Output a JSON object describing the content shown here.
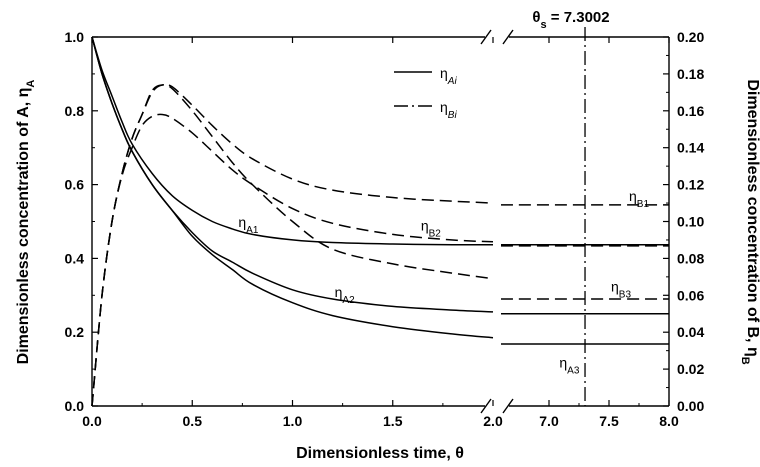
{
  "chart_data": {
    "type": "line",
    "xlabel": "Dimensionless time, θ",
    "ylabel_left": "Dimensionless concentration of A, η",
    "ylabel_left_sub": "A",
    "ylabel_right": "Dimensionless concentration of B, η",
    "ylabel_right_sub": "B",
    "annotation": {
      "text": "θ",
      "sub": "s",
      "rest": " = 7.3002",
      "x": 7.3002
    },
    "x_left_range": [
      0,
      2.0
    ],
    "x_right_range": [
      6.6,
      8.0
    ],
    "ylim_left": [
      0,
      1.0
    ],
    "ylim_right": [
      0,
      0.2
    ],
    "x_ticks_left": [
      {
        "v": 0.0,
        "label": "0.0"
      },
      {
        "v": 0.5,
        "label": "0.5"
      },
      {
        "v": 1.0,
        "label": "1.0"
      },
      {
        "v": 1.5,
        "label": "1.5"
      },
      {
        "v": 2.0,
        "label": "2.0"
      }
    ],
    "x_ticks_right": [
      {
        "v": 7.0,
        "label": "7.0"
      },
      {
        "v": 7.5,
        "label": "7.5"
      },
      {
        "v": 8.0,
        "label": "8.0"
      }
    ],
    "y_ticks_left": [
      "0.0",
      "0.2",
      "0.4",
      "0.6",
      "0.8",
      "1.0"
    ],
    "y_ticks_right": [
      "0.00",
      "0.02",
      "0.04",
      "0.06",
      "0.08",
      "0.10",
      "0.12",
      "0.14",
      "0.16",
      "0.18",
      "0.20"
    ],
    "legend": [
      {
        "text": "η",
        "sub": "Ai",
        "style": "solid"
      },
      {
        "text": "η",
        "sub": "Bi",
        "style": "dashdot"
      }
    ],
    "series": [
      {
        "name": "ηA1",
        "axis": "left",
        "style": "solid",
        "left": [
          [
            0,
            1.0
          ],
          [
            0.05,
            0.91
          ],
          [
            0.1,
            0.84
          ],
          [
            0.15,
            0.77
          ],
          [
            0.2,
            0.71
          ],
          [
            0.3,
            0.63
          ],
          [
            0.4,
            0.57
          ],
          [
            0.5,
            0.53
          ],
          [
            0.6,
            0.5
          ],
          [
            0.7,
            0.48
          ],
          [
            0.8,
            0.465
          ],
          [
            1.0,
            0.45
          ],
          [
            1.2,
            0.443
          ],
          [
            1.5,
            0.439
          ],
          [
            1.8,
            0.437
          ],
          [
            2.0,
            0.437
          ]
        ],
        "right": [
          [
            6.6,
            0.437
          ],
          [
            8.0,
            0.437
          ]
        ]
      },
      {
        "name": "ηA2",
        "axis": "left",
        "style": "solid",
        "left": [
          [
            0,
            1.0
          ],
          [
            0.05,
            0.9
          ],
          [
            0.1,
            0.82
          ],
          [
            0.15,
            0.75
          ],
          [
            0.2,
            0.69
          ],
          [
            0.3,
            0.6
          ],
          [
            0.4,
            0.53
          ],
          [
            0.5,
            0.47
          ],
          [
            0.6,
            0.42
          ],
          [
            0.7,
            0.39
          ],
          [
            0.8,
            0.36
          ],
          [
            1.0,
            0.315
          ],
          [
            1.2,
            0.29
          ],
          [
            1.5,
            0.27
          ],
          [
            1.8,
            0.26
          ],
          [
            2.0,
            0.255
          ]
        ],
        "right": [
          [
            6.6,
            0.25
          ],
          [
            8.0,
            0.25
          ]
        ]
      },
      {
        "name": "ηA3",
        "axis": "left",
        "style": "solid",
        "left": [
          [
            0,
            1.0
          ],
          [
            0.05,
            0.9
          ],
          [
            0.1,
            0.82
          ],
          [
            0.15,
            0.75
          ],
          [
            0.2,
            0.69
          ],
          [
            0.3,
            0.6
          ],
          [
            0.4,
            0.53
          ],
          [
            0.5,
            0.46
          ],
          [
            0.6,
            0.41
          ],
          [
            0.7,
            0.37
          ],
          [
            0.8,
            0.33
          ],
          [
            1.0,
            0.28
          ],
          [
            1.2,
            0.245
          ],
          [
            1.5,
            0.215
          ],
          [
            1.8,
            0.195
          ],
          [
            2.0,
            0.185
          ]
        ],
        "right": [
          [
            6.6,
            0.168
          ],
          [
            8.0,
            0.168
          ]
        ]
      },
      {
        "name": "ηB1",
        "axis": "right",
        "style": "dashed",
        "left": [
          [
            0,
            0.0
          ],
          [
            0.05,
            0.06
          ],
          [
            0.1,
            0.1
          ],
          [
            0.15,
            0.126
          ],
          [
            0.2,
            0.145
          ],
          [
            0.25,
            0.158
          ],
          [
            0.3,
            0.171
          ],
          [
            0.35,
            0.174
          ],
          [
            0.4,
            0.173
          ],
          [
            0.5,
            0.163
          ],
          [
            0.6,
            0.152
          ],
          [
            0.7,
            0.142
          ],
          [
            0.8,
            0.134
          ],
          [
            1.0,
            0.123
          ],
          [
            1.2,
            0.117
          ],
          [
            1.5,
            0.113
          ],
          [
            1.8,
            0.111
          ],
          [
            2.0,
            0.11
          ]
        ],
        "right": [
          [
            6.6,
            0.109
          ],
          [
            8.0,
            0.109
          ]
        ]
      },
      {
        "name": "ηB2",
        "axis": "right",
        "style": "dashed",
        "left": [
          [
            0,
            0.0
          ],
          [
            0.05,
            0.06
          ],
          [
            0.1,
            0.1
          ],
          [
            0.15,
            0.125
          ],
          [
            0.2,
            0.14
          ],
          [
            0.25,
            0.152
          ],
          [
            0.3,
            0.157
          ],
          [
            0.35,
            0.158
          ],
          [
            0.4,
            0.156
          ],
          [
            0.5,
            0.148
          ],
          [
            0.6,
            0.138
          ],
          [
            0.7,
            0.128
          ],
          [
            0.8,
            0.12
          ],
          [
            1.0,
            0.107
          ],
          [
            1.2,
            0.099
          ],
          [
            1.5,
            0.093
          ],
          [
            1.8,
            0.09
          ],
          [
            2.0,
            0.089
          ]
        ],
        "right": [
          [
            6.6,
            0.0868
          ],
          [
            8.0,
            0.0868
          ]
        ]
      },
      {
        "name": "ηB3",
        "axis": "right",
        "style": "dashed",
        "left": [
          [
            0,
            0.0
          ],
          [
            0.05,
            0.06
          ],
          [
            0.1,
            0.1
          ],
          [
            0.15,
            0.126
          ],
          [
            0.2,
            0.145
          ],
          [
            0.25,
            0.158
          ],
          [
            0.3,
            0.17
          ],
          [
            0.35,
            0.174
          ],
          [
            0.4,
            0.172
          ],
          [
            0.5,
            0.16
          ],
          [
            0.6,
            0.146
          ],
          [
            0.7,
            0.132
          ],
          [
            0.8,
            0.12
          ],
          [
            1.0,
            0.1
          ],
          [
            1.2,
            0.085
          ],
          [
            1.5,
            0.077
          ],
          [
            1.8,
            0.072
          ],
          [
            2.0,
            0.069
          ]
        ],
        "right": [
          [
            6.6,
            0.058
          ],
          [
            8.0,
            0.058
          ]
        ]
      }
    ],
    "curve_labels": [
      {
        "text": "η",
        "sub": "A1",
        "panel": "left",
        "x": 0.78,
        "y": 0.485,
        "axis": "left"
      },
      {
        "text": "η",
        "sub": "A2",
        "panel": "left",
        "x": 1.26,
        "y": 0.295,
        "axis": "left"
      },
      {
        "text": "η",
        "sub": "B2",
        "panel": "left",
        "x": 1.69,
        "y": 0.095,
        "axis": "right"
      },
      {
        "text": "η",
        "sub": "B1",
        "panel": "right",
        "x": 7.75,
        "y": 0.111,
        "axis": "right"
      },
      {
        "text": "η",
        "sub": "B3",
        "panel": "right",
        "x": 7.6,
        "y": 0.062,
        "axis": "right"
      },
      {
        "text": "η",
        "sub": "A3",
        "panel": "right",
        "x": 7.17,
        "y": 0.105,
        "axis": "left"
      }
    ]
  }
}
